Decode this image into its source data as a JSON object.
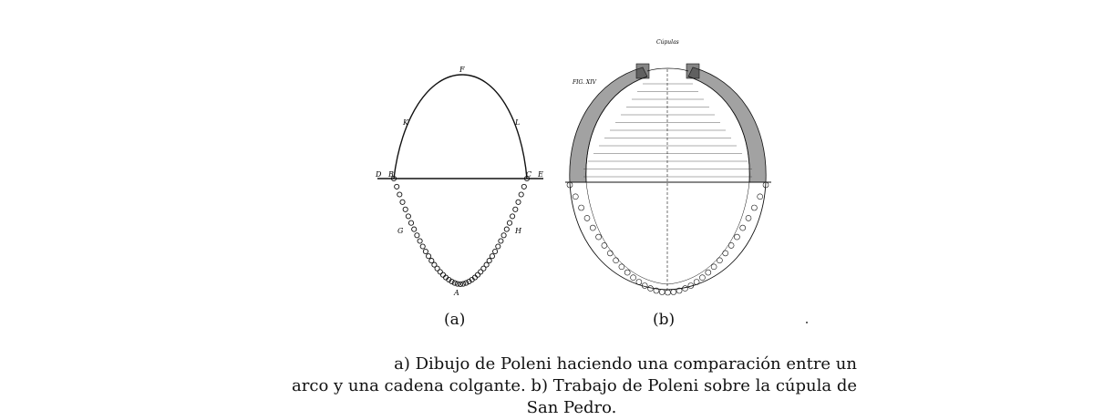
{
  "figure_a": {
    "points": {
      "F": "F",
      "K": "K",
      "L": "L",
      "D": "D",
      "B": "B",
      "C": "C",
      "E": "E",
      "G": "G",
      "H": "H",
      "A": "A"
    },
    "sublabel": "(a)"
  },
  "figure_b": {
    "title": "Cúpulas",
    "fig_label": "FIG. XIV",
    "sublabel": "(b)"
  },
  "caption": {
    "line1": "a) Dibujo de Poleni haciendo una comparación entre un",
    "line2": "arco y una cadena colgante. b) Trabajo de Poleni sobre la cúpula de",
    "line3": "San Pedro."
  }
}
